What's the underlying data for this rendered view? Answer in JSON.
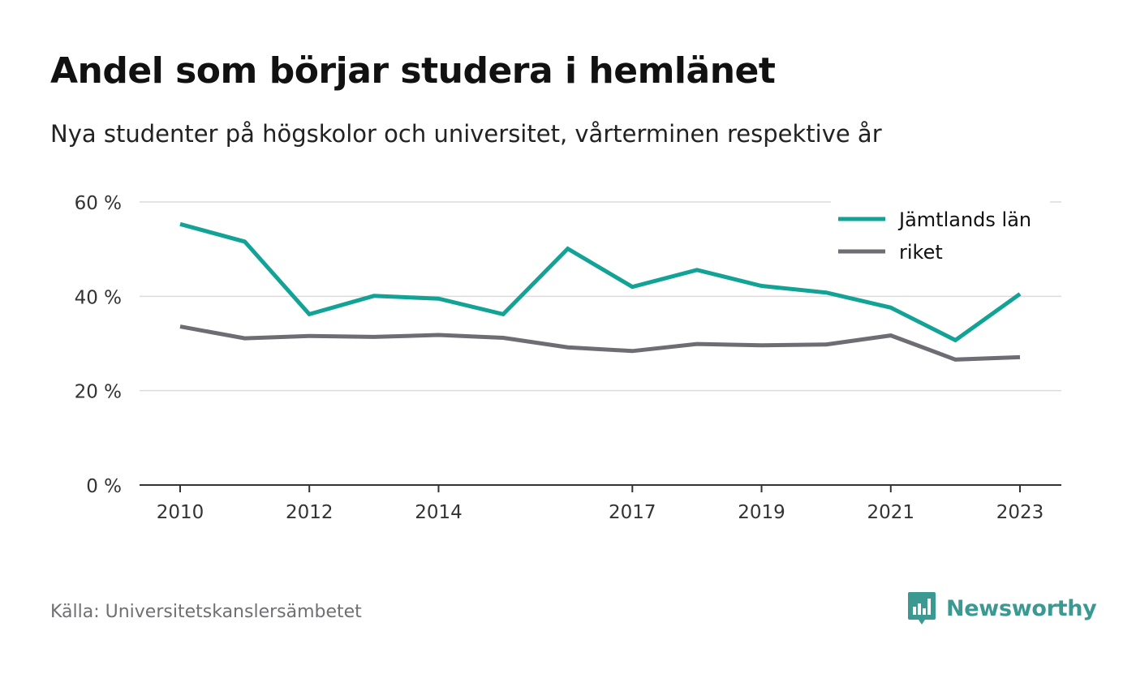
{
  "chart_data": {
    "type": "line",
    "title": "Andel som börjar studera i hemlänet",
    "subtitle": "Nya studenter på högskolor och universitet, vårterminen respektive år",
    "x": [
      2010,
      2011,
      2012,
      2013,
      2014,
      2015,
      2016,
      2017,
      2018,
      2019,
      2020,
      2021,
      2022,
      2023
    ],
    "x_ticks": [
      "2010",
      "2012",
      "2014",
      "2017",
      "2019",
      "2021",
      "2023"
    ],
    "y_ticks": [
      "0 %",
      "20 %",
      "40 %",
      "60 %"
    ],
    "ylim": [
      0,
      60
    ],
    "grid": true,
    "legend_position": "top-right",
    "series": [
      {
        "name": "Jämtlands län",
        "color": "#12a396",
        "values": [
          55.3,
          51.6,
          36.2,
          40.1,
          39.5,
          36.2,
          50.1,
          42.0,
          45.6,
          42.2,
          40.8,
          37.6,
          30.7,
          40.5
        ]
      },
      {
        "name": "riket",
        "color": "#6e6d74",
        "values": [
          33.6,
          31.1,
          31.6,
          31.4,
          31.8,
          31.2,
          29.2,
          28.4,
          29.9,
          29.6,
          29.8,
          31.7,
          26.6,
          27.1
        ]
      }
    ]
  },
  "footer": {
    "source": "Källa: Universitetskanslersämbetet",
    "brand": "Newsworthy",
    "brand_color": "#3a9a91",
    "brand_icon": "newsworthy-logo-icon"
  }
}
